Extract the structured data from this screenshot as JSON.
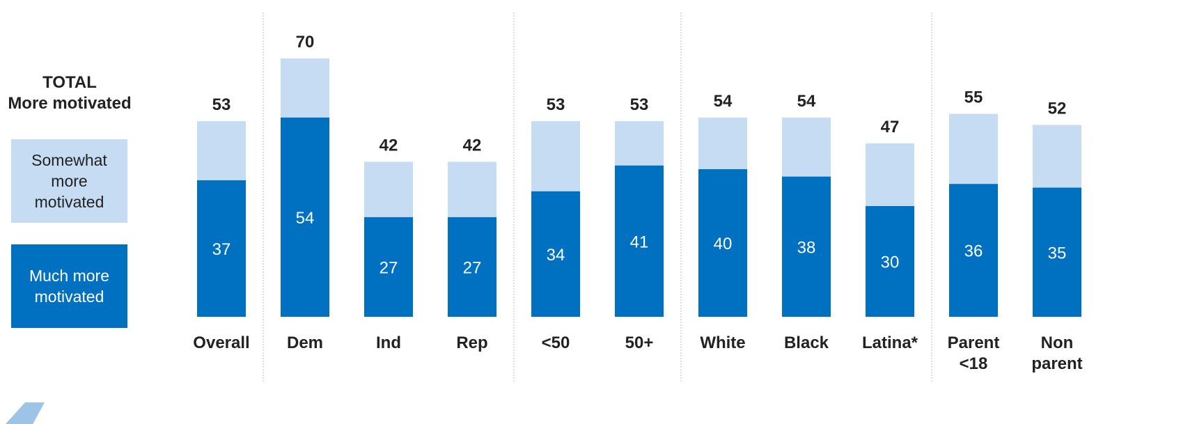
{
  "legend": {
    "title_line1": "TOTAL",
    "title_line2": "More motivated",
    "somewhat_label": "Somewhat more motivated",
    "much_label": "Much more motivated"
  },
  "colors": {
    "much_more": "#0070c0",
    "somewhat_more": "#c5dcf3",
    "separator": "#bfbfbf",
    "text": "#222222"
  },
  "chart_data": {
    "type": "bar",
    "stacked": true,
    "categories": [
      "Overall",
      "Dem",
      "Ind",
      "Rep",
      "<50",
      "50+",
      "White",
      "Black",
      "Latina*",
      "Parent <18",
      "Non parent"
    ],
    "groups": [
      [
        "Overall"
      ],
      [
        "Dem",
        "Ind",
        "Rep"
      ],
      [
        "<50",
        "50+"
      ],
      [
        "White",
        "Black",
        "Latina*"
      ],
      [
        "Parent <18",
        "Non parent"
      ]
    ],
    "series": [
      {
        "name": "Much more motivated",
        "values": [
          37,
          54,
          27,
          27,
          34,
          41,
          40,
          38,
          30,
          36,
          35
        ]
      },
      {
        "name": "Somewhat more motivated",
        "values": [
          16,
          16,
          15,
          15,
          19,
          12,
          14,
          16,
          17,
          19,
          17
        ]
      }
    ],
    "totals": [
      53,
      70,
      42,
      42,
      53,
      53,
      54,
      54,
      47,
      55,
      52
    ],
    "title": "",
    "xlabel": "",
    "ylabel": "",
    "grid": false,
    "legend_position": "left"
  }
}
